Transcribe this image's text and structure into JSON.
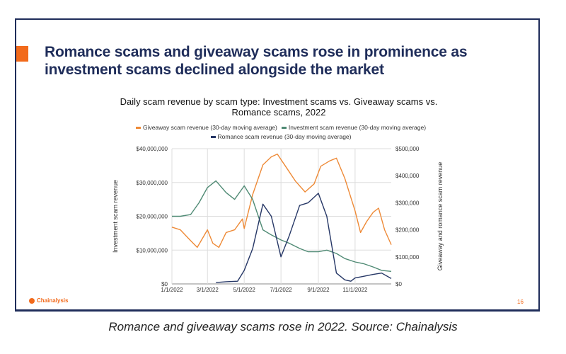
{
  "slide": {
    "title_line1": "Romance scams and giveaway scams rose in prominence as",
    "title_line2": "investment scams declined alongside the market",
    "logo": "Chainalysis",
    "page_number": "16",
    "accent_color": "#f26a1b"
  },
  "caption": "Romance and giveaway scams rose in 2022. Source: Chainalysis",
  "chart_data": {
    "type": "line",
    "title_line1": "Daily scam revenue by scam type: Investment scams vs. Giveaway scams vs.",
    "title_line2": "Romance scams, 2022",
    "ylabel_left": "Investment scam revenue",
    "ylabel_right": "Giveaway and romance scam revenue",
    "ylim_left": [
      0,
      40000000
    ],
    "ylim_right": [
      0,
      500000
    ],
    "xlim": [
      "2022-01-01",
      "2022-12-31"
    ],
    "x_ticks": [
      "1/1/2022",
      "3/1/2022",
      "5/1/2022",
      "7/1/2022",
      "9/1/2022",
      "11/1/2022"
    ],
    "y_ticks_left": [
      "$0",
      "$10,000,000",
      "$20,000,000",
      "$30,000,000",
      "$40,000,000"
    ],
    "y_ticks_right": [
      "$0",
      "$100,000",
      "$200,000",
      "$300,000",
      "$400,000",
      "$500,000"
    ],
    "grid": true,
    "legend_position": "top",
    "series": [
      {
        "name": "Giveaway scam revenue (30-day moving average)",
        "axis": "right",
        "color": "#ee8a37",
        "x": [
          "2022-01-01",
          "2022-01-15",
          "2022-02-01",
          "2022-02-12",
          "2022-03-01",
          "2022-03-10",
          "2022-03-20",
          "2022-04-01",
          "2022-04-15",
          "2022-04-28",
          "2022-05-01",
          "2022-05-15",
          "2022-06-01",
          "2022-06-15",
          "2022-06-25",
          "2022-07-10",
          "2022-07-25",
          "2022-08-10",
          "2022-08-25",
          "2022-09-05",
          "2022-09-20",
          "2022-10-01",
          "2022-10-15",
          "2022-11-01",
          "2022-11-10",
          "2022-11-20",
          "2022-12-01",
          "2022-12-10",
          "2022-12-20",
          "2022-12-31"
        ],
        "y": [
          210000,
          200000,
          160000,
          135000,
          200000,
          150000,
          135000,
          190000,
          200000,
          240000,
          205000,
          330000,
          440000,
          470000,
          480000,
          430000,
          380000,
          340000,
          370000,
          435000,
          455000,
          465000,
          390000,
          270000,
          190000,
          230000,
          265000,
          280000,
          200000,
          145000
        ]
      },
      {
        "name": "Investment scam revenue (30-day moving average)",
        "axis": "left",
        "color": "#4f8a74",
        "x": [
          "2022-01-01",
          "2022-01-15",
          "2022-02-01",
          "2022-02-15",
          "2022-03-01",
          "2022-03-15",
          "2022-04-01",
          "2022-04-15",
          "2022-05-01",
          "2022-05-15",
          "2022-06-01",
          "2022-06-15",
          "2022-07-01",
          "2022-07-15",
          "2022-08-01",
          "2022-08-15",
          "2022-09-01",
          "2022-09-15",
          "2022-10-01",
          "2022-10-15",
          "2022-11-01",
          "2022-11-15",
          "2022-12-01",
          "2022-12-15",
          "2022-12-31"
        ],
        "y": [
          20000000,
          20000000,
          20500000,
          24000000,
          28500000,
          30500000,
          27000000,
          25000000,
          29000000,
          25000000,
          16000000,
          14500000,
          13000000,
          12000000,
          10500000,
          9500000,
          9500000,
          10000000,
          9000000,
          7500000,
          6500000,
          6000000,
          5000000,
          4000000,
          3700000
        ]
      },
      {
        "name": "Romance scam revenue (30-day moving average)",
        "axis": "right",
        "color": "#263766",
        "x": [
          "2022-03-15",
          "2022-04-01",
          "2022-04-20",
          "2022-05-01",
          "2022-05-15",
          "2022-06-01",
          "2022-06-15",
          "2022-07-01",
          "2022-07-15",
          "2022-08-01",
          "2022-08-15",
          "2022-09-01",
          "2022-09-15",
          "2022-10-01",
          "2022-10-15",
          "2022-10-25",
          "2022-11-01",
          "2022-11-15",
          "2022-12-01",
          "2022-12-15",
          "2022-12-31"
        ],
        "y": [
          5000,
          8000,
          10000,
          50000,
          130000,
          295000,
          250000,
          100000,
          180000,
          290000,
          300000,
          335000,
          250000,
          40000,
          15000,
          10000,
          22000,
          28000,
          35000,
          40000,
          20000
        ]
      }
    ]
  }
}
